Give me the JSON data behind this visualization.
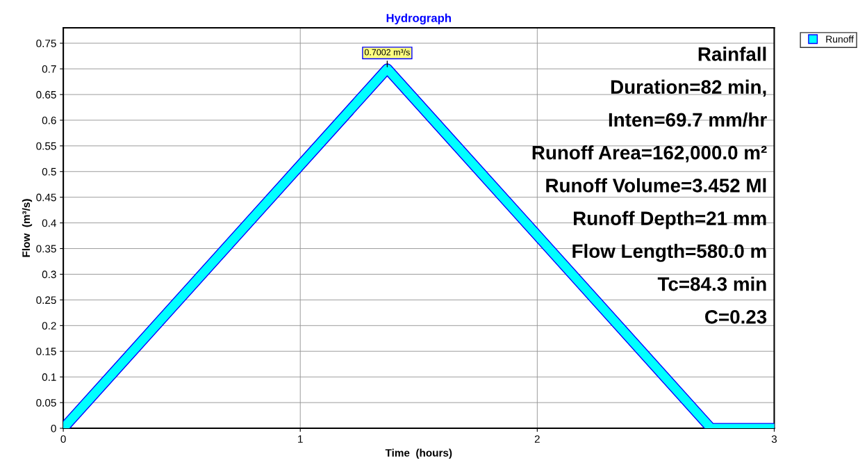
{
  "chart_data": {
    "type": "line",
    "title": "Hydrograph",
    "xlabel": "Time  (hours)",
    "ylabel": "Flow  (m³/s)",
    "x": [
      0,
      1.367,
      2.733,
      3
    ],
    "series": [
      {
        "name": "Runoff",
        "color": "#00ffff",
        "values": [
          0,
          0.7002,
          0,
          0
        ]
      }
    ],
    "xlim": [
      0,
      3
    ],
    "xticks": [
      0,
      1,
      2,
      3
    ],
    "ylim": [
      0,
      0.78
    ],
    "yticks": [
      0,
      0.05,
      0.1,
      0.15,
      0.2,
      0.25,
      0.3,
      0.35,
      0.4,
      0.45,
      0.5,
      0.55,
      0.6,
      0.65,
      0.7,
      0.75
    ],
    "grid": true,
    "legend": "top right",
    "annotations": [
      {
        "text": "0.7002 m³/s",
        "x": 1.367,
        "y": 0.7002
      },
      "Rainfall",
      "Duration=82 min,",
      "Inten=69.7 mm/hr",
      "Runoff Area=162,000.0 m²",
      "Runoff Volume=3.452 Ml",
      "Runoff Depth=21 mm",
      "Flow Length=580.0 m",
      "Tc=84.3 min",
      "C=0.23"
    ]
  }
}
